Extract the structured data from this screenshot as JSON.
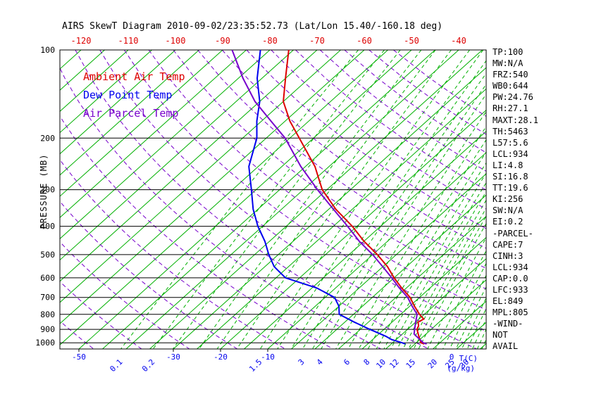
{
  "header": {
    "title": "AIRS SkewT Diagram 2010-09-02/23:35:52.73 (Lat/Lon 15.40/-160.18 deg)"
  },
  "stats_panel": {
    "lines": [
      "TP:100",
      "MW:N/A",
      "FRZ:540",
      "WB0:644",
      "PW:24.76",
      "RH:27.1",
      "MAXT:28.1",
      "TH:5463",
      "L57:5.6",
      "LCL:934",
      "LI:4.8",
      "SI:16.8",
      "TT:19.6",
      "KI:256",
      "SW:N/A",
      "EI:0.2",
      "-PARCEL-",
      "CAPE:7",
      "CINH:3",
      "LCL:934",
      "CAP:0.0",
      "LFC:933",
      "EL:849",
      "MPL:805",
      "-WIND-",
      "NOT",
      "AVAIL"
    ]
  },
  "chart_data": {
    "type": "line",
    "title": "AIRS SkewT Diagram 2010-09-02/23:35:52.73 (Lat/Lon 15.40/-160.18 deg)",
    "y_axis": {
      "label": "PRESSURE (MB)",
      "scale": "log",
      "range": [
        100,
        1050
      ],
      "ticks": [
        100,
        200,
        300,
        400,
        500,
        600,
        700,
        800,
        900,
        1000
      ],
      "unit": "mb"
    },
    "top_axis": {
      "ticks": [
        -120,
        -110,
        -100,
        -90,
        -80,
        -70,
        -60,
        -50,
        -40
      ],
      "unit": "degC",
      "color": "#dd0000"
    },
    "bottom_axis": {
      "color": "#0000ee",
      "temp_ticks": [
        -50,
        -30,
        -20,
        -10
      ],
      "extra_label": "0",
      "temp_caption": "T(C)",
      "mixing_caption": "(g/kg)",
      "mixing_labels": [
        0.1,
        0.2,
        1.5,
        3,
        4,
        6,
        8,
        10,
        12,
        15,
        20,
        25,
        30
      ]
    },
    "grid": {
      "isotherms": {
        "min": -125,
        "max": 45,
        "step": 5
      },
      "dry_adiabats": {
        "min": -50,
        "max": 150,
        "step": 10
      },
      "mixing_ratio_lines": [
        0.1,
        0.2,
        0.3,
        0.5,
        0.7,
        1,
        1.5,
        2,
        2.5,
        3,
        3.5,
        4,
        5,
        6,
        7,
        8,
        9,
        10,
        11,
        12,
        13,
        14,
        15,
        16,
        18,
        20,
        22,
        24,
        26,
        28,
        30,
        32,
        34,
        36,
        38,
        40
      ]
    },
    "colors": {
      "isotherm": "#00b000",
      "mixing": "#00b000",
      "adiabat": "#7700cc",
      "frame": "#000000",
      "ambient": "#dd0000",
      "dewpoint": "#0000ee",
      "parcel": "#7700cc"
    },
    "series": [
      {
        "name": "Ambient Air Temp",
        "color": "#dd0000",
        "units": [
          "mb",
          "degC"
        ],
        "points": [
          [
            100,
            -76
          ],
          [
            125,
            -70
          ],
          [
            150,
            -65
          ],
          [
            175,
            -59
          ],
          [
            200,
            -53
          ],
          [
            250,
            -43
          ],
          [
            300,
            -36
          ],
          [
            350,
            -28.5
          ],
          [
            400,
            -21
          ],
          [
            450,
            -15
          ],
          [
            500,
            -9
          ],
          [
            550,
            -4
          ],
          [
            600,
            0
          ],
          [
            650,
            4
          ],
          [
            700,
            8
          ],
          [
            750,
            11
          ],
          [
            800,
            14
          ],
          [
            830,
            16
          ],
          [
            850,
            15.5
          ],
          [
            875,
            16.5
          ],
          [
            900,
            17
          ],
          [
            950,
            19
          ],
          [
            1000,
            21
          ],
          [
            1010,
            22
          ]
        ]
      },
      {
        "name": "Dew Point Temp",
        "color": "#0000ee",
        "units": [
          "mb",
          "degC"
        ],
        "points": [
          [
            100,
            -82
          ],
          [
            125,
            -76
          ],
          [
            150,
            -70
          ],
          [
            175,
            -66
          ],
          [
            200,
            -62
          ],
          [
            250,
            -57
          ],
          [
            300,
            -51
          ],
          [
            350,
            -46
          ],
          [
            400,
            -41
          ],
          [
            450,
            -36
          ],
          [
            500,
            -32
          ],
          [
            550,
            -28
          ],
          [
            600,
            -23
          ],
          [
            650,
            -14
          ],
          [
            700,
            -8
          ],
          [
            750,
            -5
          ],
          [
            800,
            -3
          ],
          [
            850,
            2
          ],
          [
            900,
            7
          ],
          [
            950,
            12
          ],
          [
            975,
            14
          ],
          [
            1000,
            17
          ],
          [
            1010,
            18
          ]
        ]
      },
      {
        "name": "Air Parcel Temp",
        "color": "#7700cc",
        "units": [
          "mb",
          "degC"
        ],
        "points": [
          [
            100,
            -88
          ],
          [
            125,
            -79
          ],
          [
            150,
            -71
          ],
          [
            175,
            -63
          ],
          [
            200,
            -56
          ],
          [
            250,
            -46
          ],
          [
            300,
            -37
          ],
          [
            350,
            -29
          ],
          [
            400,
            -22
          ],
          [
            450,
            -16
          ],
          [
            500,
            -10
          ],
          [
            550,
            -5
          ],
          [
            600,
            -0.5
          ],
          [
            650,
            3.5
          ],
          [
            700,
            7.5
          ],
          [
            750,
            10.5
          ],
          [
            800,
            13.5
          ],
          [
            850,
            15
          ],
          [
            900,
            16.5
          ],
          [
            934,
            17.5
          ],
          [
            1000,
            21.5
          ],
          [
            1010,
            22.5
          ]
        ]
      }
    ]
  }
}
